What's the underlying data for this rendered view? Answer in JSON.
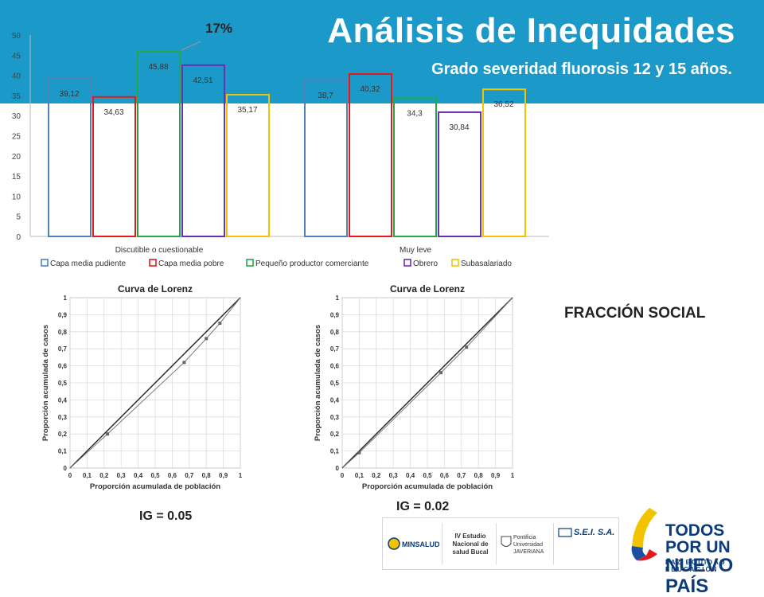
{
  "header": {
    "title": "Análisis de Inequidades",
    "subtitle": "Grado  severidad fluorosis 12 y 15 años.",
    "percent_label": "17%"
  },
  "colors": {
    "banner": "#1b9ac9",
    "capa_media_pudiente": "#4f81bd",
    "capa_media_pobre": "#e21a1a",
    "pequeno_productor": "#22a84a",
    "obrero": "#6a2fb5",
    "subasalariado": "#f2c400"
  },
  "chart_data": [
    {
      "type": "bar",
      "categories": [
        "Discutible o cuestionable",
        "Muy leve"
      ],
      "series": [
        {
          "name": "Capa media pudiente",
          "values": [
            39.12,
            38.7
          ],
          "labels": [
            "39,12",
            "38,7"
          ],
          "color": "#4f81bd"
        },
        {
          "name": "Capa media pobre",
          "values": [
            34.63,
            40.32
          ],
          "labels": [
            "34,63",
            "40,32"
          ],
          "color": "#e21a1a"
        },
        {
          "name": "Pequeño productor comerciante",
          "values": [
            45.88,
            34.3
          ],
          "labels": [
            "45,88",
            "34,3"
          ],
          "color": "#22a84a"
        },
        {
          "name": "Obrero",
          "values": [
            42.51,
            30.84
          ],
          "labels": [
            "42,51",
            "30,84"
          ],
          "color": "#6a2fb5"
        },
        {
          "name": "Subasalariado",
          "values": [
            35.17,
            36.52
          ],
          "labels": [
            "35,17",
            "36,52"
          ],
          "color": "#f2c400"
        }
      ],
      "ylim": [
        0,
        50
      ],
      "yticks": [
        "0",
        "5",
        "10",
        "15",
        "20",
        "25",
        "30",
        "35",
        "40",
        "45",
        "50"
      ],
      "legend": "bottom"
    },
    {
      "type": "line",
      "title": "Curva de Lorenz",
      "xlabel": "Proporción acumulada de población",
      "ylabel": "Proporción acumulada de casos",
      "xlim": [
        0,
        1
      ],
      "ylim": [
        0,
        1
      ],
      "ticks": [
        "0",
        "0,1",
        "0,2",
        "0,3",
        "0,4",
        "0,5",
        "0,6",
        "0,7",
        "0,8",
        "0,9",
        "1"
      ],
      "grid": true,
      "series": [
        {
          "x": [
            0,
            1
          ],
          "y": [
            0,
            1
          ],
          "style": "equality"
        },
        {
          "x": [
            0,
            0.22,
            0.67,
            0.8,
            0.88,
            1
          ],
          "y": [
            0,
            0.2,
            0.62,
            0.76,
            0.85,
            1
          ],
          "style": "curve"
        }
      ]
    },
    {
      "type": "line",
      "title": "Curva de Lorenz",
      "xlabel": "Proporción acumulada de población",
      "ylabel": "Proporción acumulada de casos",
      "xlim": [
        0,
        1
      ],
      "ylim": [
        0,
        1
      ],
      "ticks": [
        "0",
        "0,1",
        "0,2",
        "0,3",
        "0,4",
        "0,5",
        "0,6",
        "0,7",
        "0,8",
        "0,9",
        "1"
      ],
      "grid": true,
      "series": [
        {
          "x": [
            0,
            1
          ],
          "y": [
            0,
            1
          ],
          "style": "equality"
        },
        {
          "x": [
            0,
            0.1,
            0.58,
            0.73,
            1
          ],
          "y": [
            0,
            0.09,
            0.56,
            0.71,
            1
          ],
          "style": "curve"
        }
      ]
    }
  ],
  "fraction_label": "FRACCIÓN SOCIAL",
  "ig": {
    "left": "IG = 0.05",
    "right": "IG = 0.02"
  },
  "logos": {
    "minsalud": "MINSALUD",
    "estudio": "IV Estudio Nacional de salud Bucal",
    "javeriana": "Pontificia Universidad JAVERIANA",
    "sei": "S.E.I. S.A."
  },
  "brand": {
    "line1": "TODOS POR UN",
    "line2": "NUEVO PAÍS",
    "tagline": "PAZ  EQUIDAD  EDUCACIÓN"
  }
}
